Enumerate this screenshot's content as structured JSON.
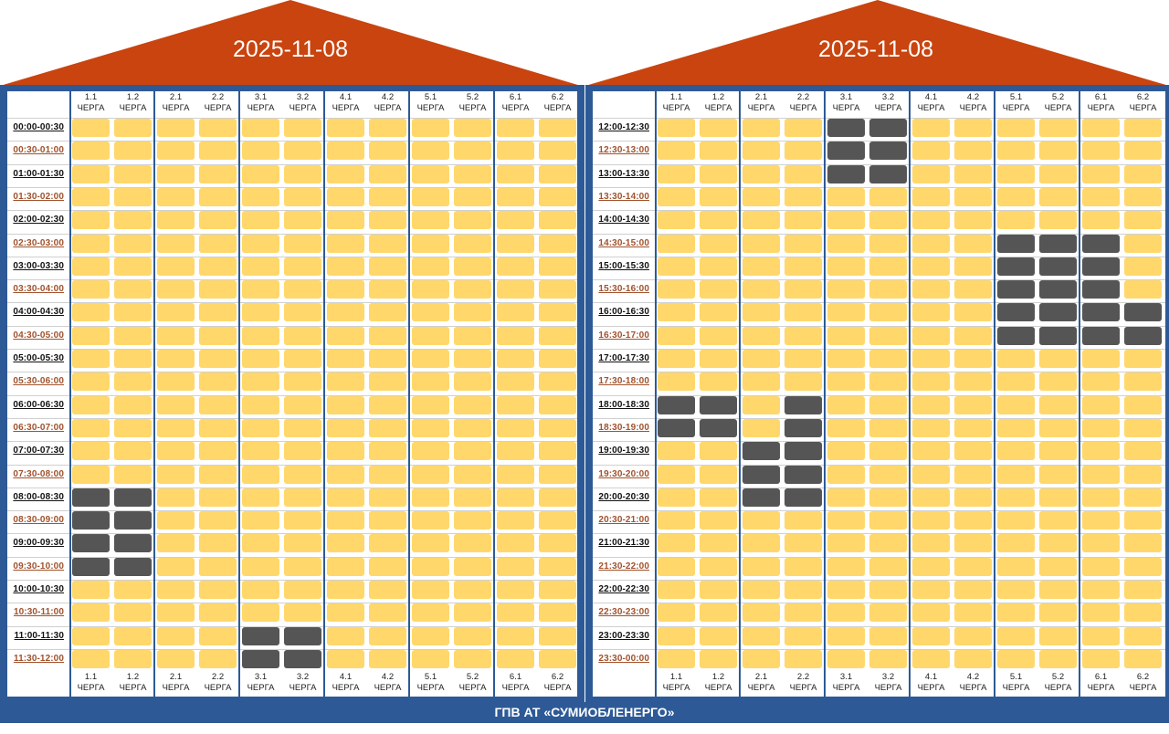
{
  "colors": {
    "roof": "#c9440f",
    "frame": "#2d5a96",
    "on": "#ffd76b",
    "off": "#555555"
  },
  "footer": "ГПВ АТ «СУМИОБЛЕНЕРГО»",
  "queue_word": "ЧЕРГА",
  "queues": [
    "1.1",
    "1.2",
    "2.1",
    "2.2",
    "3.1",
    "3.2",
    "4.1",
    "4.2",
    "5.1",
    "5.2",
    "6.1",
    "6.2"
  ],
  "panels": [
    {
      "date": "2025-11-08",
      "slots": [
        "00:00-00:30",
        "00:30-01:00",
        "01:00-01:30",
        "01:30-02:00",
        "02:00-02:30",
        "02:30-03:00",
        "03:00-03:30",
        "03:30-04:00",
        "04:00-04:30",
        "04:30-05:00",
        "05:00-05:30",
        "05:30-06:00",
        "06:00-06:30",
        "06:30-07:00",
        "07:00-07:30",
        "07:30-08:00",
        "08:00-08:30",
        "08:30-09:00",
        "09:00-09:30",
        "09:30-10:00",
        "10:00-10:30",
        "10:30-11:00",
        "11:00-11:30",
        "11:30-12:00"
      ],
      "outages": {
        "1.1": [
          "08:00-08:30",
          "08:30-09:00",
          "09:00-09:30",
          "09:30-10:00"
        ],
        "1.2": [
          "08:00-08:30",
          "08:30-09:00",
          "09:00-09:30",
          "09:30-10:00"
        ],
        "3.1": [
          "11:00-11:30",
          "11:30-12:00"
        ],
        "3.2": [
          "11:00-11:30",
          "11:30-12:00"
        ]
      }
    },
    {
      "date": "2025-11-08",
      "slots": [
        "12:00-12:30",
        "12:30-13:00",
        "13:00-13:30",
        "13:30-14:00",
        "14:00-14:30",
        "14:30-15:00",
        "15:00-15:30",
        "15:30-16:00",
        "16:00-16:30",
        "16:30-17:00",
        "17:00-17:30",
        "17:30-18:00",
        "18:00-18:30",
        "18:30-19:00",
        "19:00-19:30",
        "19:30-20:00",
        "20:00-20:30",
        "20:30-21:00",
        "21:00-21:30",
        "21:30-22:00",
        "22:00-22:30",
        "22:30-23:00",
        "23:00-23:30",
        "23:30-00:00"
      ],
      "outages": {
        "1.1": [
          "18:00-18:30",
          "18:30-19:00"
        ],
        "1.2": [
          "18:00-18:30",
          "18:30-19:00"
        ],
        "2.1": [
          "19:00-19:30",
          "19:30-20:00",
          "20:00-20:30"
        ],
        "2.2": [
          "18:00-18:30",
          "18:30-19:00",
          "19:00-19:30",
          "19:30-20:00",
          "20:00-20:30"
        ],
        "3.1": [
          "12:00-12:30",
          "12:30-13:00",
          "13:00-13:30"
        ],
        "3.2": [
          "12:00-12:30",
          "12:30-13:00",
          "13:00-13:30"
        ],
        "5.1": [
          "14:30-15:00",
          "15:00-15:30",
          "15:30-16:00",
          "16:00-16:30",
          "16:30-17:00"
        ],
        "5.2": [
          "14:30-15:00",
          "15:00-15:30",
          "15:30-16:00",
          "16:00-16:30",
          "16:30-17:00"
        ],
        "6.1": [
          "14:30-15:00",
          "15:00-15:30",
          "15:30-16:00",
          "16:00-16:30",
          "16:30-17:00"
        ],
        "6.2": [
          "16:00-16:30",
          "16:30-17:00"
        ]
      }
    }
  ]
}
